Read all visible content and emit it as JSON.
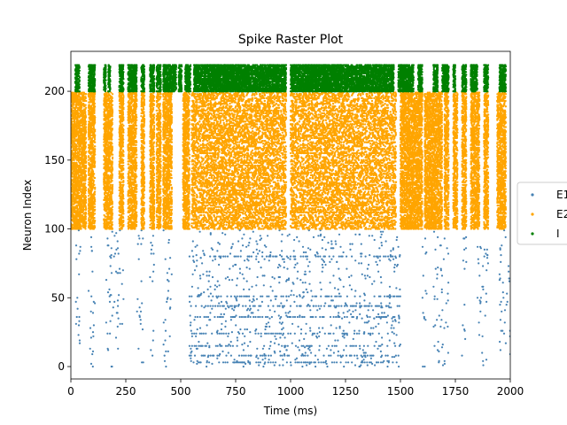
{
  "chart_data": {
    "type": "scatter",
    "title": "Spike Raster Plot",
    "xlabel": "Time (ms)",
    "ylabel": "Neuron Index",
    "xlim": [
      0,
      2000
    ],
    "ylim": [
      -9,
      229
    ],
    "xticks": [
      0,
      250,
      500,
      750,
      1000,
      1250,
      1500,
      1750,
      2000
    ],
    "yticks": [
      0,
      50,
      100,
      150,
      200
    ],
    "grid": false,
    "legend_position": "right (clipped)",
    "series": [
      {
        "name": "E1",
        "color": "#4682b4",
        "neurons": [
          0,
          99
        ],
        "bursts": [
          [
            20,
            45
          ],
          [
            80,
            110
          ],
          [
            160,
            240
          ],
          [
            300,
            330
          ],
          [
            360,
            380
          ],
          [
            420,
            460
          ],
          [
            540,
            1000
          ],
          [
            1000,
            1500
          ],
          [
            1600,
            1620
          ],
          [
            1650,
            1720
          ],
          [
            1780,
            1800
          ],
          [
            1850,
            1900
          ],
          [
            1950,
            2000
          ]
        ],
        "persistent_neurons": [
          3,
          8,
          15,
          24,
          36,
          44,
          51,
          80
        ]
      },
      {
        "name": "E2",
        "color": "#ffa500",
        "neurons": [
          100,
          199
        ],
        "bursts": [
          [
            0,
            70
          ],
          [
            80,
            110
          ],
          [
            150,
            190
          ],
          [
            220,
            240
          ],
          [
            260,
            300
          ],
          [
            320,
            335
          ],
          [
            360,
            380
          ],
          [
            390,
            410
          ],
          [
            420,
            460
          ],
          [
            510,
            540
          ],
          [
            550,
            980
          ],
          [
            1000,
            1480
          ],
          [
            1500,
            1600
          ],
          [
            1610,
            1690
          ],
          [
            1700,
            1720
          ],
          [
            1740,
            1760
          ],
          [
            1780,
            1800
          ],
          [
            1820,
            1860
          ],
          [
            1880,
            1900
          ],
          [
            1940,
            1980
          ]
        ],
        "persistent_neurons": [
          104,
          112,
          125,
          132,
          140,
          155,
          166,
          176,
          186
        ]
      },
      {
        "name": "I",
        "color": "#008000",
        "neurons": [
          200,
          219
        ],
        "bursts": [
          [
            20,
            40
          ],
          [
            80,
            110
          ],
          [
            150,
            160
          ],
          [
            170,
            180
          ],
          [
            220,
            240
          ],
          [
            260,
            300
          ],
          [
            320,
            335
          ],
          [
            360,
            380
          ],
          [
            390,
            410
          ],
          [
            420,
            480
          ],
          [
            490,
            505
          ],
          [
            520,
            545
          ],
          [
            560,
            980
          ],
          [
            1000,
            1470
          ],
          [
            1490,
            1560
          ],
          [
            1580,
            1600
          ],
          [
            1650,
            1670
          ],
          [
            1690,
            1720
          ],
          [
            1740,
            1750
          ],
          [
            1780,
            1800
          ],
          [
            1820,
            1850
          ],
          [
            1880,
            1900
          ],
          [
            1950,
            1980
          ]
        ]
      }
    ]
  }
}
